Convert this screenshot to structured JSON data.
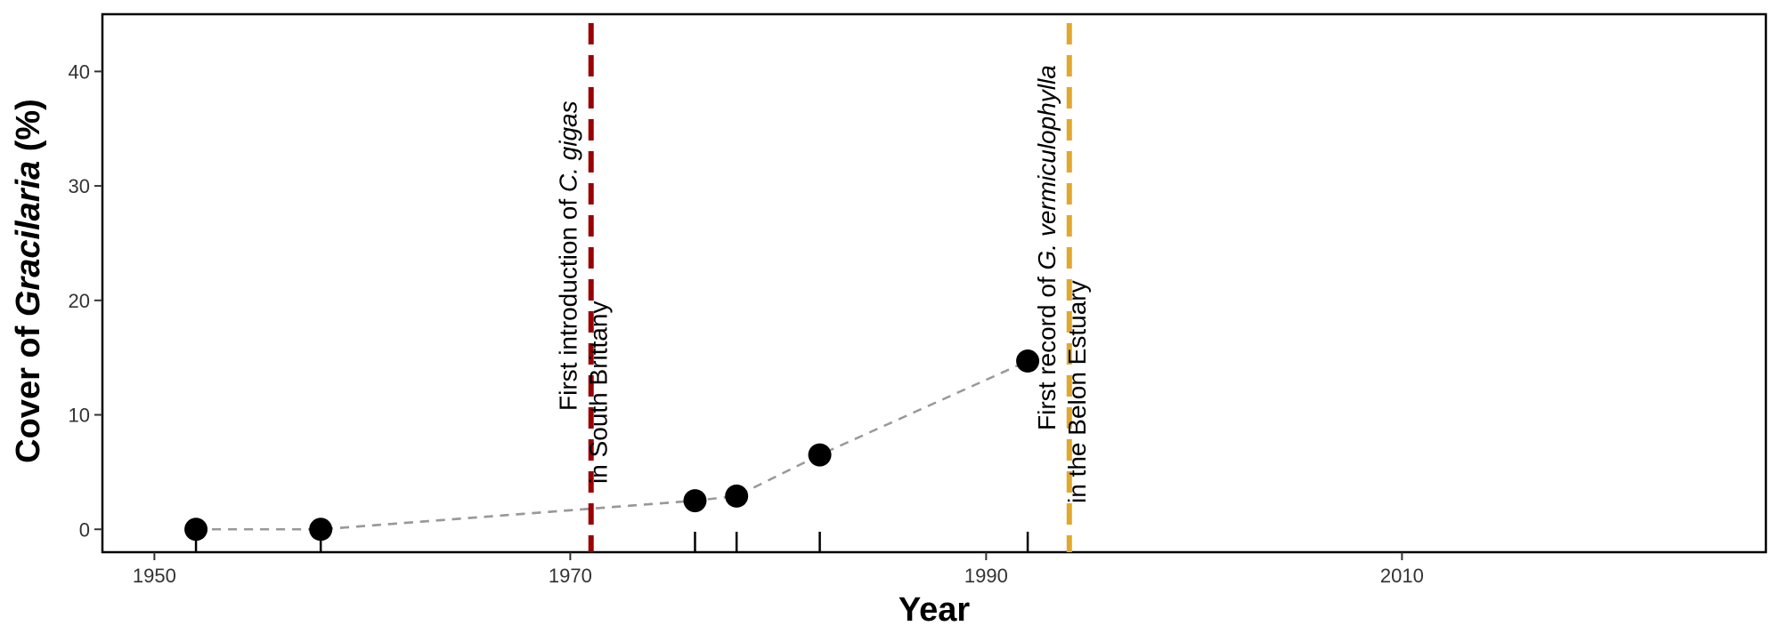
{
  "chart_data": {
    "type": "scatter",
    "xlabel": "Year",
    "ylabel": {
      "prefix": "Cover of ",
      "italic": "Gracilaria",
      "suffix": " (%)"
    },
    "xlim": [
      1947.5,
      2027.5
    ],
    "ylim": [
      -2,
      45
    ],
    "xticks": [
      1950,
      1970,
      1990,
      2010
    ],
    "yticks": [
      0,
      10,
      20,
      30,
      40
    ],
    "grid": false,
    "series": [
      {
        "x": [
          1952,
          1958,
          1976,
          1978,
          1982,
          1992
        ],
        "y": [
          0,
          0,
          2.5,
          2.9,
          6.5,
          14.7
        ],
        "marker_color": "#000000",
        "line_style": "dashed",
        "line_color": "#999999"
      }
    ],
    "trend_line": {
      "x": [
        1952,
        1958,
        1971,
        1976
      ],
      "y": [
        0,
        0,
        1.8,
        2.5
      ],
      "style": "dashed",
      "color": "#999999"
    },
    "rug_x": [
      1952,
      1958,
      1976,
      1978,
      1982,
      1992
    ],
    "vlines": [
      {
        "x": 1971,
        "color": "#990000",
        "style": "dashed",
        "label_line1": [
          {
            "text": "First introduction of ",
            "italic": false
          },
          {
            "text": "C. gigas",
            "italic": true
          }
        ],
        "label_line2": [
          {
            "text": "in South Brittany",
            "italic": false
          }
        ]
      },
      {
        "x": 1994,
        "color": "#e0a82e",
        "style": "dashed",
        "label_line1": [
          {
            "text": "First record of ",
            "italic": false
          },
          {
            "text": "G. vermiculophylla",
            "italic": true
          }
        ],
        "label_line2": [
          {
            "text": "in the Belon Estuary",
            "italic": false
          }
        ]
      }
    ]
  }
}
